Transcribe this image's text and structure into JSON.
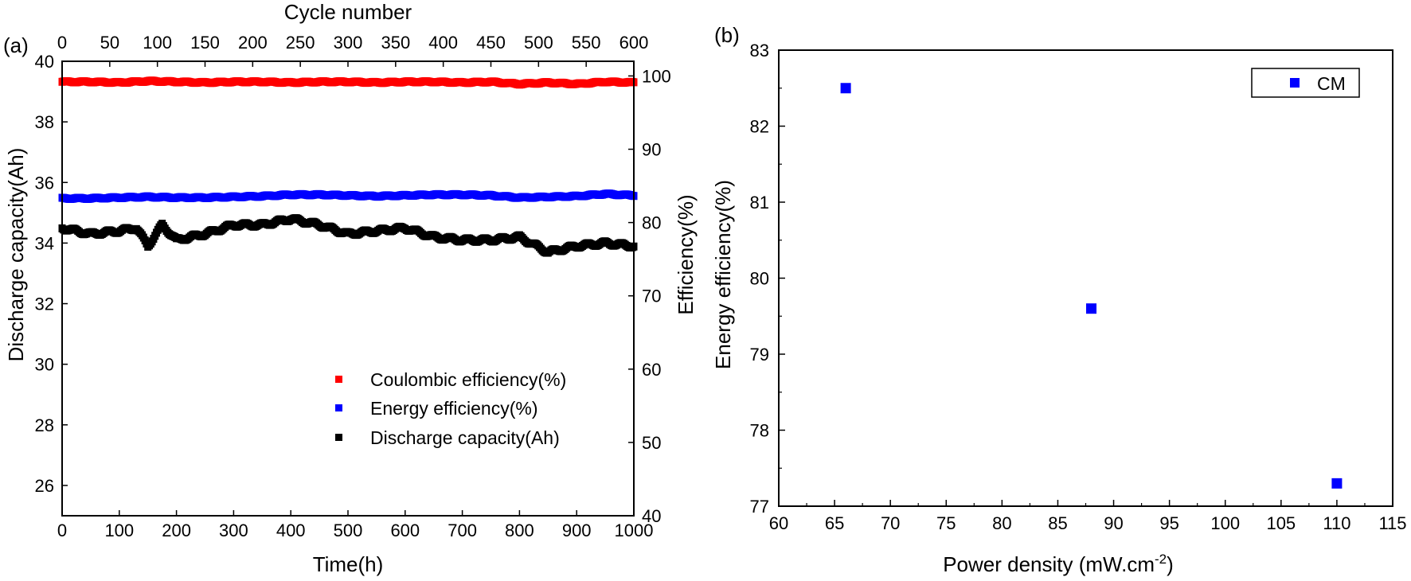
{
  "chart_data": [
    {
      "panel_label": "(a)",
      "type": "scatter",
      "xlabel": "Time(h)",
      "x_top_label": "Cycle number",
      "ylabel_left": "Discharge capacity(Ah)",
      "ylabel_right": "Efficiency(%)",
      "xlim": [
        0,
        1000
      ],
      "x_top_lim": [
        0,
        600
      ],
      "ylim_left": [
        25,
        40
      ],
      "ylim_right": [
        40,
        102
      ],
      "x_ticks": [
        "0",
        "100",
        "200",
        "300",
        "400",
        "500",
        "600",
        "700",
        "800",
        "900",
        "1000"
      ],
      "x_top_ticks": [
        "0",
        "50",
        "100",
        "150",
        "200",
        "250",
        "300",
        "350",
        "400",
        "450",
        "500",
        "550",
        "600"
      ],
      "y_left_ticks": [
        "26",
        "28",
        "30",
        "32",
        "34",
        "36",
        "38",
        "40"
      ],
      "y_right_ticks": [
        "40",
        "50",
        "60",
        "70",
        "80",
        "90",
        "100"
      ],
      "legend_position": "center-right",
      "series": [
        {
          "name": "Coulombic efficiency(%)",
          "axis": "right",
          "color": "#ff0000",
          "x": [
            0,
            50,
            100,
            150,
            200,
            250,
            300,
            350,
            400,
            450,
            500,
            550,
            600,
            650,
            700,
            750,
            800,
            850,
            900,
            950,
            1000
          ],
          "y": [
            99.2,
            99.2,
            99.1,
            99.3,
            99.2,
            99.1,
            99.2,
            99.2,
            99.1,
            99.2,
            99.2,
            99.1,
            99.2,
            99.2,
            99.1,
            99.2,
            98.9,
            99.1,
            98.9,
            99.2,
            99.1
          ]
        },
        {
          "name": "Energy efficiency(%)",
          "axis": "right",
          "color": "#0000ff",
          "x": [
            0,
            50,
            100,
            150,
            200,
            250,
            300,
            350,
            400,
            450,
            500,
            550,
            600,
            650,
            700,
            750,
            800,
            850,
            900,
            950,
            1000
          ],
          "y": [
            83.3,
            83.3,
            83.4,
            83.5,
            83.4,
            83.4,
            83.5,
            83.6,
            83.8,
            83.8,
            83.7,
            83.6,
            83.7,
            83.8,
            83.8,
            83.7,
            83.4,
            83.5,
            83.6,
            83.9,
            83.7
          ]
        },
        {
          "name": "Discharge capacity(Ah)",
          "axis": "left",
          "color": "#000000",
          "x": [
            0,
            50,
            100,
            130,
            150,
            175,
            200,
            250,
            300,
            350,
            400,
            450,
            500,
            550,
            600,
            650,
            700,
            750,
            800,
            850,
            900,
            950,
            1000
          ],
          "y": [
            34.5,
            34.3,
            34.4,
            34.5,
            33.9,
            34.6,
            34.1,
            34.3,
            34.6,
            34.6,
            34.8,
            34.6,
            34.3,
            34.4,
            34.5,
            34.2,
            34.1,
            34.1,
            34.2,
            33.7,
            33.9,
            34.0,
            33.9
          ]
        }
      ]
    },
    {
      "panel_label": "(b)",
      "type": "scatter",
      "xlabel_main": "Power density (mW.cm",
      "xlabel_sup": "-2",
      "xlabel_end": ")",
      "ylabel": "Energy efficiency(%)",
      "xlim": [
        60,
        115
      ],
      "ylim": [
        77,
        83
      ],
      "x_ticks": [
        "60",
        "65",
        "70",
        "75",
        "80",
        "85",
        "90",
        "95",
        "100",
        "105",
        "110",
        "115"
      ],
      "y_ticks": [
        "77",
        "78",
        "79",
        "80",
        "81",
        "82",
        "83"
      ],
      "legend_position": "top-right",
      "series": [
        {
          "name": "CM",
          "color": "#0000ff",
          "x": [
            66,
            88,
            110
          ],
          "y": [
            82.5,
            79.6,
            77.3
          ]
        }
      ]
    }
  ]
}
